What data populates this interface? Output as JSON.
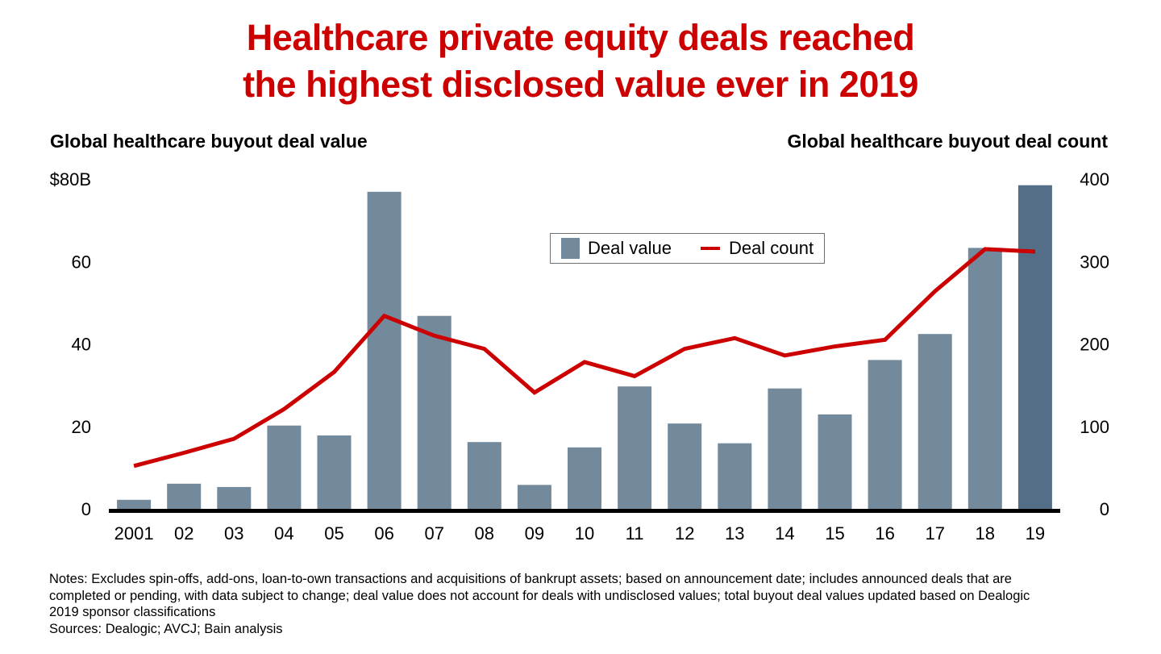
{
  "title_lines": [
    "Healthcare private equity deals reached",
    "the highest disclosed value ever in 2019"
  ],
  "colors": {
    "title": "#cc0000",
    "bar": "#738a9d",
    "bar_highlight": "#546e87",
    "line": "#cc0000",
    "axis": "#000000"
  },
  "chart_data": {
    "type": "bar+line",
    "title": "Healthcare private equity deals reached the highest disclosed value ever in 2019",
    "categories": [
      "2001",
      "02",
      "03",
      "04",
      "05",
      "06",
      "07",
      "08",
      "09",
      "10",
      "11",
      "12",
      "13",
      "14",
      "15",
      "16",
      "17",
      "18",
      "19"
    ],
    "series": [
      {
        "name": "Deal value",
        "type": "bar",
        "axis": "left",
        "values": [
          2.2,
          6.1,
          5.3,
          20.2,
          17.8,
          76.9,
          46.8,
          16.2,
          5.8,
          14.9,
          29.7,
          20.7,
          15.9,
          29.2,
          22.9,
          36.1,
          42.4,
          63.3,
          78.5
        ],
        "highlight_index": 18
      },
      {
        "name": "Deal count",
        "type": "line",
        "axis": "right",
        "values": [
          52,
          68,
          85,
          121,
          166,
          234,
          210,
          194,
          141,
          178,
          161,
          194,
          207,
          186,
          197,
          205,
          264,
          315,
          312
        ]
      }
    ],
    "left_axis": {
      "label": "Global healthcare buyout deal value",
      "ylim": [
        0,
        80
      ],
      "ticks": [
        0,
        20,
        40,
        60,
        80
      ],
      "tick_labels": [
        "0",
        "20",
        "40",
        "60",
        "$80B"
      ]
    },
    "right_axis": {
      "label": "Global healthcare buyout deal count",
      "ylim": [
        0,
        400
      ],
      "ticks": [
        0,
        100,
        200,
        300,
        400
      ],
      "tick_labels": [
        "0",
        "100",
        "200",
        "300",
        "400"
      ]
    },
    "legend": {
      "placement": "top-center",
      "entries": [
        "Deal value",
        "Deal count"
      ]
    },
    "grid": false
  },
  "notes": [
    "Notes: Excludes spin-offs, add-ons, loan-to-own transactions and acquisitions of bankrupt assets; based on announcement date; includes announced deals that are",
    "completed or pending, with data subject to change; deal value does not account for deals with undisclosed values; total buyout deal values updated based on Dealogic",
    "2019 sponsor classifications",
    "Sources: Dealogic; AVCJ; Bain analysis"
  ]
}
